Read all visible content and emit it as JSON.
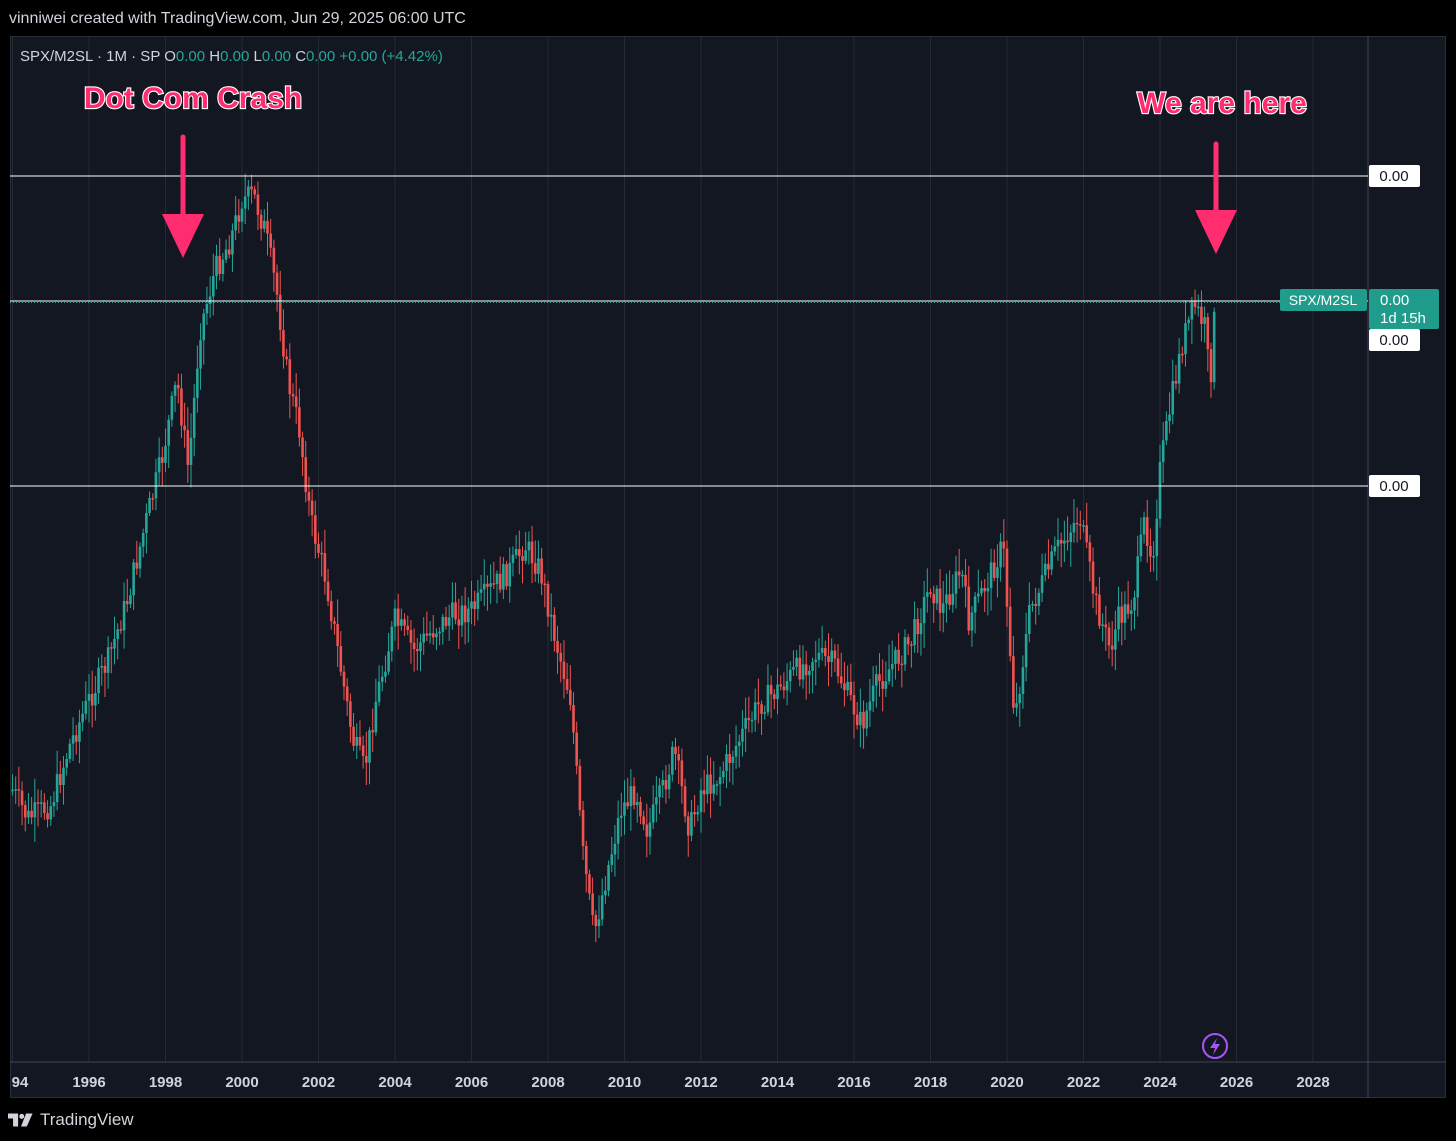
{
  "header": {
    "credit": "vinniwei created with TradingView.com, Jun 29, 2025 06:00 UTC"
  },
  "legend": {
    "symbol": "SPX/M2SL · 1M · SP",
    "o_label": "O",
    "o_value": "0.00",
    "h_label": "H",
    "h_value": "0.00",
    "l_label": "L",
    "l_value": "0.00",
    "c_label": "C",
    "c_value": "0.00",
    "change": "+0.00 (+4.42%)"
  },
  "annotations": {
    "left_label": "Dot Com Crash",
    "right_label": "We are here"
  },
  "price_tags": {
    "line_top": "0.00",
    "line_mid": "0.00",
    "below_current": "0.00",
    "line_low": "0.00",
    "current_symbol": "SPX/M2SL",
    "current_value": "0.00",
    "countdown": "1d 15h"
  },
  "footer": {
    "brand": "TradingView"
  },
  "colors": {
    "up": "#26a69a",
    "down": "#ef5350",
    "annotation": "#ff2d6f",
    "background": "#131722",
    "grid": "#363a45",
    "text": "#d1d4dc"
  },
  "icons": {
    "replay": "lightning-icon",
    "brand": "tradingview-logo-icon"
  },
  "chart_data": {
    "type": "candlestick",
    "interval": "1M",
    "x_ticks": [
      "94",
      "1996",
      "1998",
      "2000",
      "2002",
      "2004",
      "2006",
      "2008",
      "2010",
      "2012",
      "2014",
      "2016",
      "2018",
      "2020",
      "2022",
      "2024",
      "2026",
      "2028"
    ],
    "x_range": [
      1994.0,
      2029.5
    ],
    "series_close_anchors": [
      [
        1994.0,
        790
      ],
      [
        1994.4,
        818
      ],
      [
        1995.0,
        805
      ],
      [
        1995.5,
        745
      ],
      [
        1996.0,
        700
      ],
      [
        1996.5,
        660
      ],
      [
        1997.0,
        600
      ],
      [
        1997.5,
        520
      ],
      [
        1997.9,
        460
      ],
      [
        1998.3,
        380
      ],
      [
        1998.6,
        470
      ],
      [
        1998.9,
        330
      ],
      [
        1999.3,
        270
      ],
      [
        1999.7,
        240
      ],
      [
        2000.0,
        200
      ],
      [
        2000.3,
        195
      ],
      [
        2000.6,
        230
      ],
      [
        2000.9,
        290
      ],
      [
        2001.2,
        380
      ],
      [
        2001.5,
        430
      ],
      [
        2001.8,
        520
      ],
      [
        2002.2,
        580
      ],
      [
        2002.5,
        650
      ],
      [
        2002.9,
        740
      ],
      [
        2003.2,
        770
      ],
      [
        2003.5,
        700
      ],
      [
        2004.0,
        620
      ],
      [
        2004.5,
        650
      ],
      [
        2005.0,
        630
      ],
      [
        2005.5,
        615
      ],
      [
        2006.0,
        610
      ],
      [
        2006.5,
        590
      ],
      [
        2007.0,
        570
      ],
      [
        2007.4,
        545
      ],
      [
        2007.8,
        570
      ],
      [
        2008.2,
        640
      ],
      [
        2008.6,
        700
      ],
      [
        2008.9,
        850
      ],
      [
        2009.2,
        935
      ],
      [
        2009.5,
        880
      ],
      [
        2009.9,
        810
      ],
      [
        2010.3,
        790
      ],
      [
        2010.6,
        830
      ],
      [
        2011.0,
        790
      ],
      [
        2011.3,
        750
      ],
      [
        2011.7,
        830
      ],
      [
        2012.0,
        790
      ],
      [
        2012.5,
        775
      ],
      [
        2013.0,
        740
      ],
      [
        2013.5,
        705
      ],
      [
        2014.0,
        690
      ],
      [
        2014.5,
        670
      ],
      [
        2015.0,
        655
      ],
      [
        2015.5,
        665
      ],
      [
        2015.9,
        700
      ],
      [
        2016.2,
        725
      ],
      [
        2016.6,
        685
      ],
      [
        2017.0,
        665
      ],
      [
        2017.5,
        640
      ],
      [
        2018.0,
        585
      ],
      [
        2018.3,
        610
      ],
      [
        2018.8,
        570
      ],
      [
        2019.0,
        620
      ],
      [
        2019.5,
        580
      ],
      [
        2019.9,
        545
      ],
      [
        2020.2,
        720
      ],
      [
        2020.6,
        610
      ],
      [
        2020.9,
        585
      ],
      [
        2021.3,
        550
      ],
      [
        2021.9,
        515
      ],
      [
        2022.3,
        600
      ],
      [
        2022.7,
        650
      ],
      [
        2022.9,
        620
      ],
      [
        2023.3,
        600
      ],
      [
        2023.6,
        520
      ],
      [
        2023.8,
        560
      ],
      [
        2024.0,
        470
      ],
      [
        2024.3,
        400
      ],
      [
        2024.6,
        340
      ],
      [
        2024.9,
        305
      ],
      [
        2025.2,
        330
      ],
      [
        2025.3,
        390
      ],
      [
        2025.45,
        300
      ]
    ],
    "horizontal_lines": [
      "top",
      "current",
      "mid",
      "low"
    ]
  }
}
